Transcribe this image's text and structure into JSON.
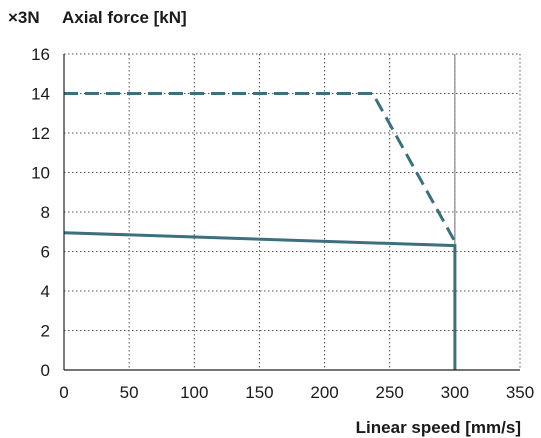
{
  "chart_data": {
    "type": "line",
    "title": "",
    "y_multiplier_label": "×3N",
    "ylabel": "Axial force [kN]",
    "xlabel": "Linear speed [mm/s]",
    "xlim": [
      0,
      350
    ],
    "ylim": [
      0,
      16
    ],
    "x_ticks": [
      0,
      50,
      100,
      150,
      200,
      250,
      300,
      350
    ],
    "y_ticks": [
      0,
      2,
      4,
      6,
      8,
      10,
      12,
      14,
      16
    ],
    "grid": true,
    "grid_style": "dotted",
    "series": [
      {
        "style": "dashed",
        "color": "#3e6f7e",
        "points": [
          [
            0,
            14
          ],
          [
            237,
            14
          ],
          [
            300,
            6.5
          ]
        ]
      },
      {
        "style": "solid",
        "color": "#3e6f7e",
        "points": [
          [
            0,
            6.95
          ],
          [
            300,
            6.3
          ],
          [
            300,
            0
          ]
        ]
      }
    ],
    "reference_lines": [
      {
        "orientation": "vertical",
        "x": 300,
        "color": "#888888"
      }
    ]
  }
}
